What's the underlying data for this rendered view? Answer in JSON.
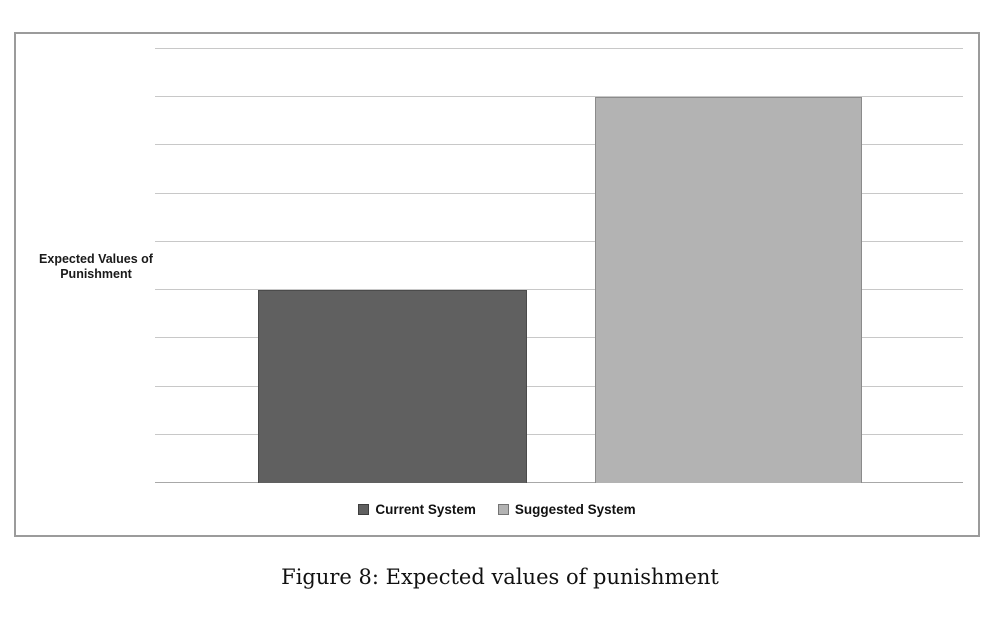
{
  "caption": "Figure 8: Expected values of punishment",
  "chart": {
    "ylabel_lines": [
      "Expected Values of",
      "Punishment"
    ]
  },
  "chart_data": {
    "type": "bar",
    "title": "",
    "categories": [
      "Current System",
      "Suggested System"
    ],
    "values": [
      4,
      8
    ],
    "colors": [
      "#606060",
      "#b3b3b3"
    ],
    "xlabel": "",
    "ylabel": "Expected Values of Punishment",
    "ylim": [
      0,
      9
    ],
    "y_major_unit": 1,
    "y_tick_labels_visible": false,
    "gridlines": "horizontal",
    "legend_position": "bottom",
    "frame_border_color": "#9b9b9b"
  }
}
